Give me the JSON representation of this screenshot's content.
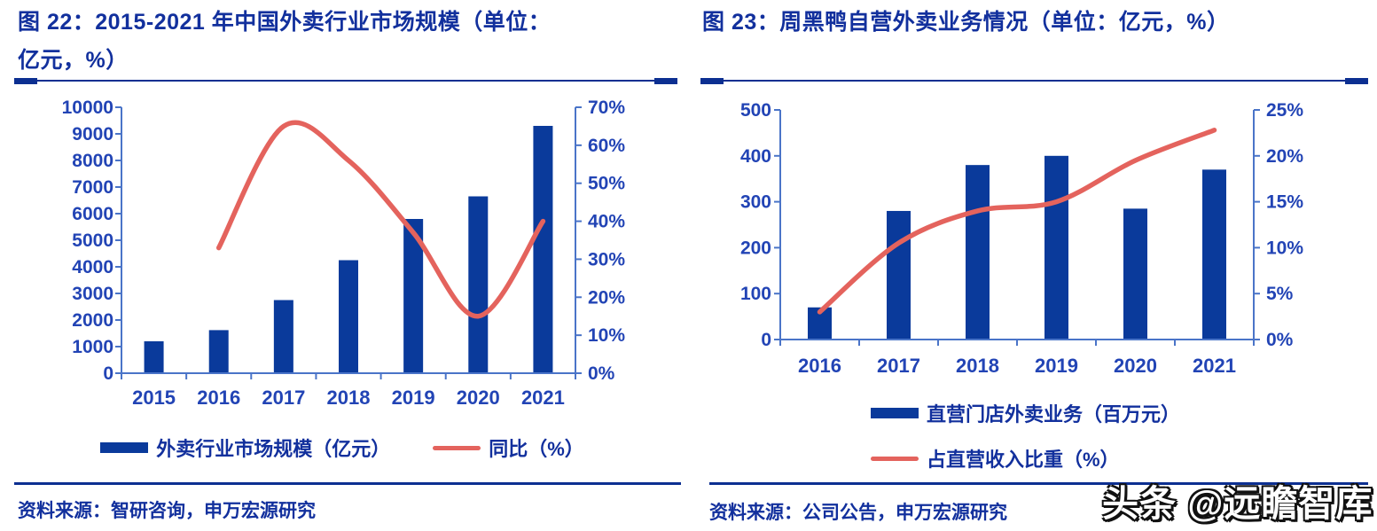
{
  "colors": {
    "title_blue": "#12309d",
    "tick_label_blue": "#2244b5",
    "axis_line_blue": "#4a74c8",
    "bar_fill": "#0a3a9b",
    "line_stroke": "#e4635d",
    "divider_navy": "#0c2f91",
    "watermark_fill": "#ffffff",
    "watermark_outline": "#111111"
  },
  "left_panel": {
    "title_line1": "图 22：2015-2021 年中国外卖行业市场规模（单位：",
    "title_line2": "亿元，%）",
    "legend": {
      "bar_label": "外卖行业市场规模（亿元）",
      "line_label": "同比（%）"
    },
    "source": "资料来源：智研咨询，申万宏源研究"
  },
  "right_panel": {
    "title": "图 23：周黑鸭自营外卖业务情况（单位：亿元，%）",
    "legend": {
      "bar_label": "直营门店外卖业务（百万元）",
      "line_label": "占直营收入比重（%）"
    },
    "source": "资料来源：公司公告，申万宏源研究"
  },
  "watermark": "头条 @远瞻智库",
  "chart_data": [
    {
      "type": "bar",
      "subtype": "bar+line-combo",
      "title": "图 22：2015-2021 年中国外卖行业市场规模（单位：亿元，%）",
      "categories": [
        "2015",
        "2016",
        "2017",
        "2018",
        "2019",
        "2020",
        "2021"
      ],
      "series": [
        {
          "name": "外卖行业市场规模（亿元）",
          "type": "bar",
          "axis": "left",
          "values": [
            1200,
            1620,
            2750,
            4250,
            5800,
            6650,
            9300
          ]
        },
        {
          "name": "同比（%）",
          "type": "line",
          "axis": "right",
          "values": [
            null,
            33,
            65,
            56,
            37,
            15,
            40
          ]
        }
      ],
      "left_axis": {
        "min": 0,
        "max": 10000,
        "step": 1000,
        "ticks": [
          "0",
          "1000",
          "2000",
          "3000",
          "4000",
          "5000",
          "6000",
          "7000",
          "8000",
          "9000",
          "10000"
        ]
      },
      "right_axis": {
        "min": 0,
        "max": 70,
        "step": 10,
        "ticks": [
          "0%",
          "10%",
          "20%",
          "30%",
          "40%",
          "50%",
          "60%",
          "70%"
        ]
      },
      "legend_position": "bottom",
      "grid": false
    },
    {
      "type": "bar",
      "subtype": "bar+line-combo",
      "title": "图 23：周黑鸭自营外卖业务情况（单位：亿元，%）",
      "categories": [
        "2016",
        "2017",
        "2018",
        "2019",
        "2020",
        "2021"
      ],
      "series": [
        {
          "name": "直营门店外卖业务（百万元）",
          "type": "bar",
          "axis": "left",
          "values": [
            70,
            280,
            380,
            400,
            285,
            370
          ]
        },
        {
          "name": "占直营收入比重（%）",
          "type": "line",
          "axis": "right",
          "values": [
            3,
            10.5,
            14,
            15,
            19.5,
            22.8
          ]
        }
      ],
      "left_axis": {
        "min": 0,
        "max": 500,
        "step": 100,
        "ticks": [
          "0",
          "100",
          "200",
          "300",
          "400",
          "500"
        ]
      },
      "right_axis": {
        "min": 0,
        "max": 25,
        "step": 5,
        "ticks": [
          "0%",
          "5%",
          "10%",
          "15%",
          "20%",
          "25%"
        ]
      },
      "legend_position": "bottom",
      "grid": false
    }
  ]
}
